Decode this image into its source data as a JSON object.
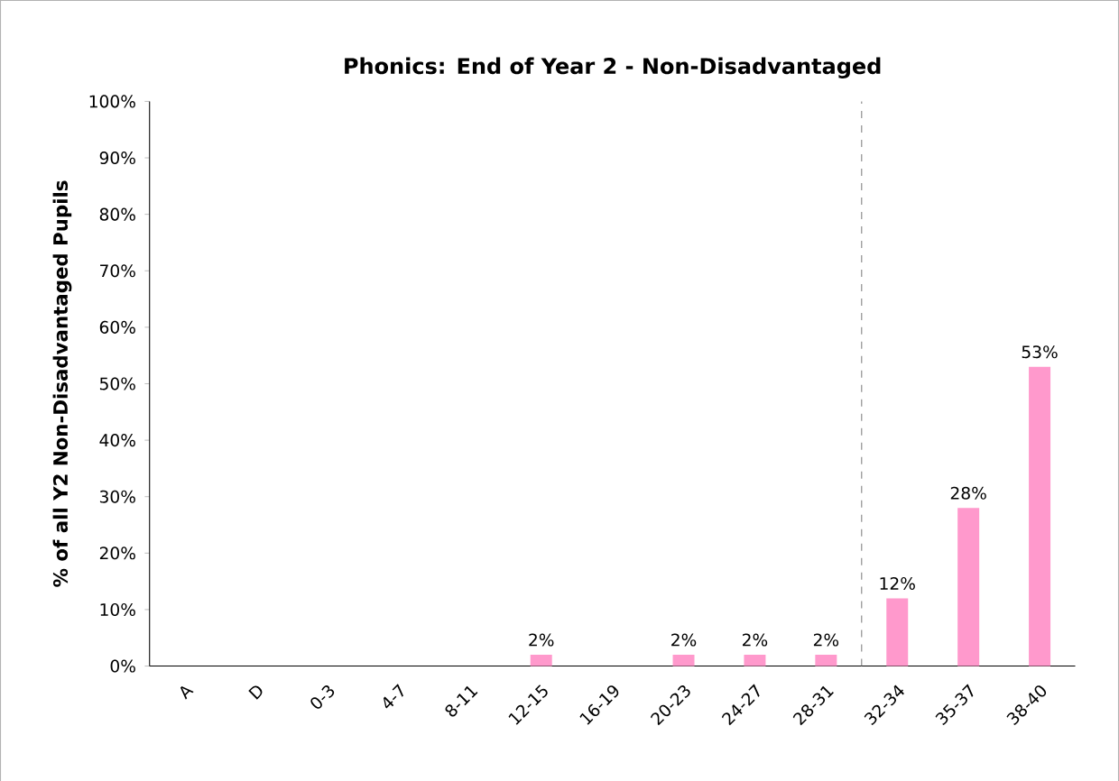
{
  "chart_data": {
    "type": "bar",
    "title": "Phonics: End of Year 2 - Non-Disadvantaged",
    "ylabel": "% of all Y2 Non-Disadvantaged Pupils",
    "categories": [
      "A",
      "D",
      "0-3",
      "4-7",
      "8-11",
      "12-15",
      "16-19",
      "20-23",
      "24-27",
      "28-31",
      "32-34",
      "35-37",
      "38-40"
    ],
    "values": [
      0,
      0,
      0,
      0,
      0,
      2,
      0,
      2,
      2,
      2,
      12,
      28,
      53
    ],
    "value_labels": [
      null,
      null,
      null,
      null,
      null,
      "2%",
      null,
      "2%",
      "2%",
      "2%",
      "12%",
      "28%",
      "53%"
    ],
    "color": "#ff99cc",
    "ylim": [
      0,
      100
    ],
    "yticks": [
      {
        "value": 0,
        "label": "0%"
      },
      {
        "value": 10,
        "label": "10%"
      },
      {
        "value": 20,
        "label": "20%"
      },
      {
        "value": 30,
        "label": "30%"
      },
      {
        "value": 40,
        "label": "40%"
      },
      {
        "value": 50,
        "label": "50%"
      },
      {
        "value": 60,
        "label": "60%"
      },
      {
        "value": 70,
        "label": "70%"
      },
      {
        "value": 80,
        "label": "80%"
      },
      {
        "value": 90,
        "label": "90%"
      },
      {
        "value": 100,
        "label": "100%"
      }
    ],
    "grid": false
  }
}
